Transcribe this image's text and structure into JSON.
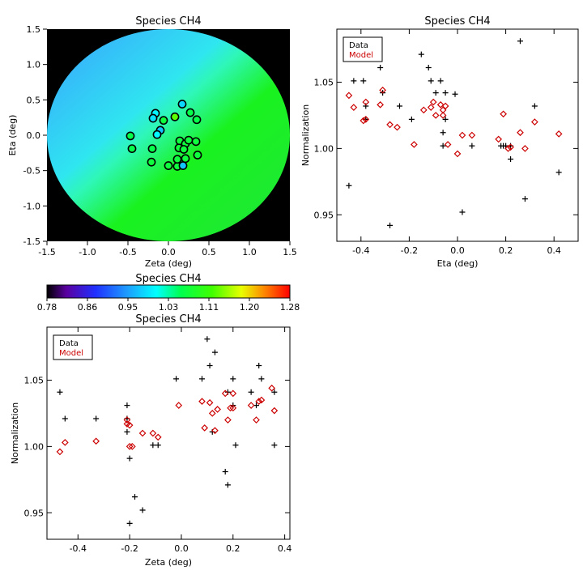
{
  "colors": {
    "data_marker": "#000000",
    "model_marker": "#cc0000",
    "background": "#ffffff",
    "map_outside": "#000000"
  },
  "colorbar": {
    "title": "Species CH4",
    "ticks": [
      "0.78",
      "0.86",
      "0.95",
      "1.03",
      "1.11",
      "1.20",
      "1.28"
    ],
    "range": [
      0.78,
      1.28
    ]
  },
  "chart_data": [
    {
      "id": "map",
      "type": "heatmap",
      "title": "Species CH4",
      "xlabel": "Zeta (deg)",
      "ylabel": "Eta (deg)",
      "xlim": [
        -1.5,
        1.5
      ],
      "ylim": [
        -1.5,
        1.5
      ],
      "xticks": [
        "-1.5",
        "-1.0",
        "-0.5",
        "0.0",
        "0.5",
        "1.0",
        "1.5"
      ],
      "yticks": [
        "-1.5",
        "-1.0",
        "-0.5",
        "0.0",
        "0.5",
        "1.0",
        "1.5"
      ],
      "field_radius_deg": 1.5,
      "field_gradient": {
        "upper_left_value": 0.96,
        "center_value": 1.01,
        "lower_right_value": 1.07
      },
      "stations": [
        {
          "zeta": -0.16,
          "eta": 0.31,
          "value": 1.0
        },
        {
          "zeta": -0.19,
          "eta": 0.24,
          "value": 0.99
        },
        {
          "zeta": -0.1,
          "eta": 0.07,
          "value": 0.97
        },
        {
          "zeta": -0.14,
          "eta": 0.01,
          "value": 1.0
        },
        {
          "zeta": -0.06,
          "eta": 0.21,
          "value": 1.07
        },
        {
          "zeta": 0.08,
          "eta": 0.26,
          "value": 1.13
        },
        {
          "zeta": 0.17,
          "eta": 0.44,
          "value": 0.98
        },
        {
          "zeta": 0.27,
          "eta": 0.32,
          "value": 1.06
        },
        {
          "zeta": 0.35,
          "eta": 0.22,
          "value": 1.06
        },
        {
          "zeta": -0.47,
          "eta": -0.01,
          "value": 1.06
        },
        {
          "zeta": -0.45,
          "eta": -0.19,
          "value": 1.06
        },
        {
          "zeta": -0.2,
          "eta": -0.19,
          "value": 1.06
        },
        {
          "zeta": -0.21,
          "eta": -0.38,
          "value": 1.07
        },
        {
          "zeta": 0.0,
          "eta": -0.43,
          "value": 1.07
        },
        {
          "zeta": 0.11,
          "eta": -0.44,
          "value": 1.07
        },
        {
          "zeta": 0.11,
          "eta": -0.34,
          "value": 1.07
        },
        {
          "zeta": 0.18,
          "eta": -0.43,
          "value": 0.97
        },
        {
          "zeta": 0.21,
          "eta": -0.33,
          "value": 1.07
        },
        {
          "zeta": 0.14,
          "eta": -0.08,
          "value": 1.07
        },
        {
          "zeta": 0.21,
          "eta": -0.12,
          "value": 1.07
        },
        {
          "zeta": 0.25,
          "eta": -0.07,
          "value": 1.07
        },
        {
          "zeta": 0.34,
          "eta": -0.09,
          "value": 1.07
        },
        {
          "zeta": 0.36,
          "eta": -0.28,
          "value": 1.07
        },
        {
          "zeta": 0.13,
          "eta": -0.18,
          "value": 1.07
        },
        {
          "zeta": 0.19,
          "eta": -0.2,
          "value": 1.07
        }
      ]
    },
    {
      "id": "eta_plot",
      "type": "scatter",
      "title": "Species CH4",
      "xlabel": "Eta (deg)",
      "ylabel": "Normalization",
      "xlim": [
        -0.5,
        0.5
      ],
      "ylim": [
        0.93,
        1.09
      ],
      "xticks": [
        -0.4,
        -0.2,
        0.0,
        0.2,
        0.4
      ],
      "xtick_labels": [
        "-0.4",
        "-0.2",
        "0.0",
        "0.2",
        "0.4"
      ],
      "yticks": [
        0.95,
        1.0,
        1.05
      ],
      "ytick_labels": [
        "0.95",
        "1.00",
        "1.05"
      ],
      "legend": {
        "position": "top-left",
        "entries": [
          "Data",
          "Model"
        ]
      },
      "series": [
        {
          "name": "Data",
          "marker": "plus",
          "x": [
            -0.45,
            -0.43,
            -0.39,
            -0.38,
            -0.38,
            -0.32,
            -0.31,
            -0.28,
            -0.24,
            -0.19,
            -0.15,
            -0.12,
            -0.11,
            -0.09,
            -0.07,
            -0.06,
            -0.06,
            -0.05,
            -0.05,
            -0.01,
            0.02,
            0.06,
            0.18,
            0.19,
            0.2,
            0.22,
            0.22,
            0.26,
            0.28,
            0.32,
            0.42
          ],
          "y": [
            0.972,
            1.051,
            1.051,
            1.032,
            1.022,
            1.061,
            1.042,
            0.942,
            1.032,
            1.022,
            1.071,
            1.061,
            1.051,
            1.042,
            1.051,
            1.012,
            1.002,
            1.042,
            1.022,
            1.041,
            0.952,
            1.002,
            1.002,
            1.002,
            1.002,
            1.002,
            0.992,
            1.081,
            0.962,
            1.032,
            0.982
          ]
        },
        {
          "name": "Model",
          "marker": "diamond",
          "x": [
            -0.45,
            -0.43,
            -0.39,
            -0.38,
            -0.38,
            -0.32,
            -0.31,
            -0.28,
            -0.25,
            -0.18,
            -0.14,
            -0.11,
            -0.1,
            -0.09,
            -0.07,
            -0.06,
            -0.06,
            -0.05,
            -0.04,
            0.0,
            0.02,
            0.06,
            0.17,
            0.19,
            0.21,
            0.22,
            0.26,
            0.28,
            0.32,
            0.42
          ],
          "y": [
            1.04,
            1.031,
            1.021,
            1.035,
            1.022,
            1.033,
            1.044,
            1.018,
            1.016,
            1.003,
            1.029,
            1.031,
            1.035,
            1.025,
            1.033,
            1.029,
            1.025,
            1.032,
            1.003,
            0.996,
            1.01,
            1.01,
            1.007,
            1.026,
            1.0,
            1.001,
            1.012,
            1.0,
            1.02,
            1.011
          ]
        }
      ]
    },
    {
      "id": "zeta_plot",
      "type": "scatter",
      "title": "Species CH4",
      "xlabel": "Zeta (deg)",
      "ylabel": "Normalization",
      "xlim": [
        -0.52,
        0.42
      ],
      "ylim": [
        0.93,
        1.09
      ],
      "xticks": [
        -0.4,
        -0.2,
        0.0,
        0.2,
        0.4
      ],
      "xtick_labels": [
        "-0.4",
        "-0.2",
        "0.0",
        "0.2",
        "0.4"
      ],
      "yticks": [
        0.95,
        1.0,
        1.05
      ],
      "ytick_labels": [
        "0.95",
        "1.00",
        "1.05"
      ],
      "legend": {
        "position": "top-left",
        "entries": [
          "Data",
          "Model"
        ]
      },
      "series": [
        {
          "name": "Data",
          "marker": "plus",
          "x": [
            -0.47,
            -0.45,
            -0.33,
            -0.21,
            -0.21,
            -0.2,
            -0.21,
            -0.2,
            -0.18,
            -0.15,
            -0.11,
            -0.09,
            -0.02,
            0.08,
            0.1,
            0.11,
            0.12,
            0.13,
            0.17,
            0.18,
            0.18,
            0.2,
            0.2,
            0.21,
            0.27,
            0.29,
            0.3,
            0.31,
            0.36,
            0.36
          ],
          "y": [
            1.041,
            1.021,
            1.021,
            1.021,
            1.031,
            0.991,
            1.011,
            0.942,
            0.962,
            0.952,
            1.001,
            1.001,
            1.051,
            1.051,
            1.081,
            1.061,
            1.011,
            1.071,
            0.981,
            0.971,
            1.041,
            1.031,
            1.051,
            1.001,
            1.041,
            1.031,
            1.061,
            1.051,
            1.001,
            1.041
          ]
        },
        {
          "name": "Model",
          "marker": "diamond",
          "x": [
            -0.47,
            -0.45,
            -0.33,
            -0.21,
            -0.21,
            -0.2,
            -0.2,
            -0.19,
            -0.15,
            -0.11,
            -0.09,
            -0.01,
            0.08,
            0.09,
            0.11,
            0.12,
            0.13,
            0.14,
            0.17,
            0.18,
            0.19,
            0.2,
            0.2,
            0.27,
            0.29,
            0.3,
            0.31,
            0.35,
            0.36
          ],
          "y": [
            0.996,
            1.003,
            1.004,
            1.02,
            1.017,
            1.0,
            1.016,
            1.0,
            1.01,
            1.01,
            1.007,
            1.031,
            1.034,
            1.014,
            1.033,
            1.025,
            1.012,
            1.028,
            1.04,
            1.02,
            1.029,
            1.04,
            1.029,
            1.031,
            1.02,
            1.034,
            1.035,
            1.044,
            1.027
          ]
        }
      ]
    }
  ]
}
